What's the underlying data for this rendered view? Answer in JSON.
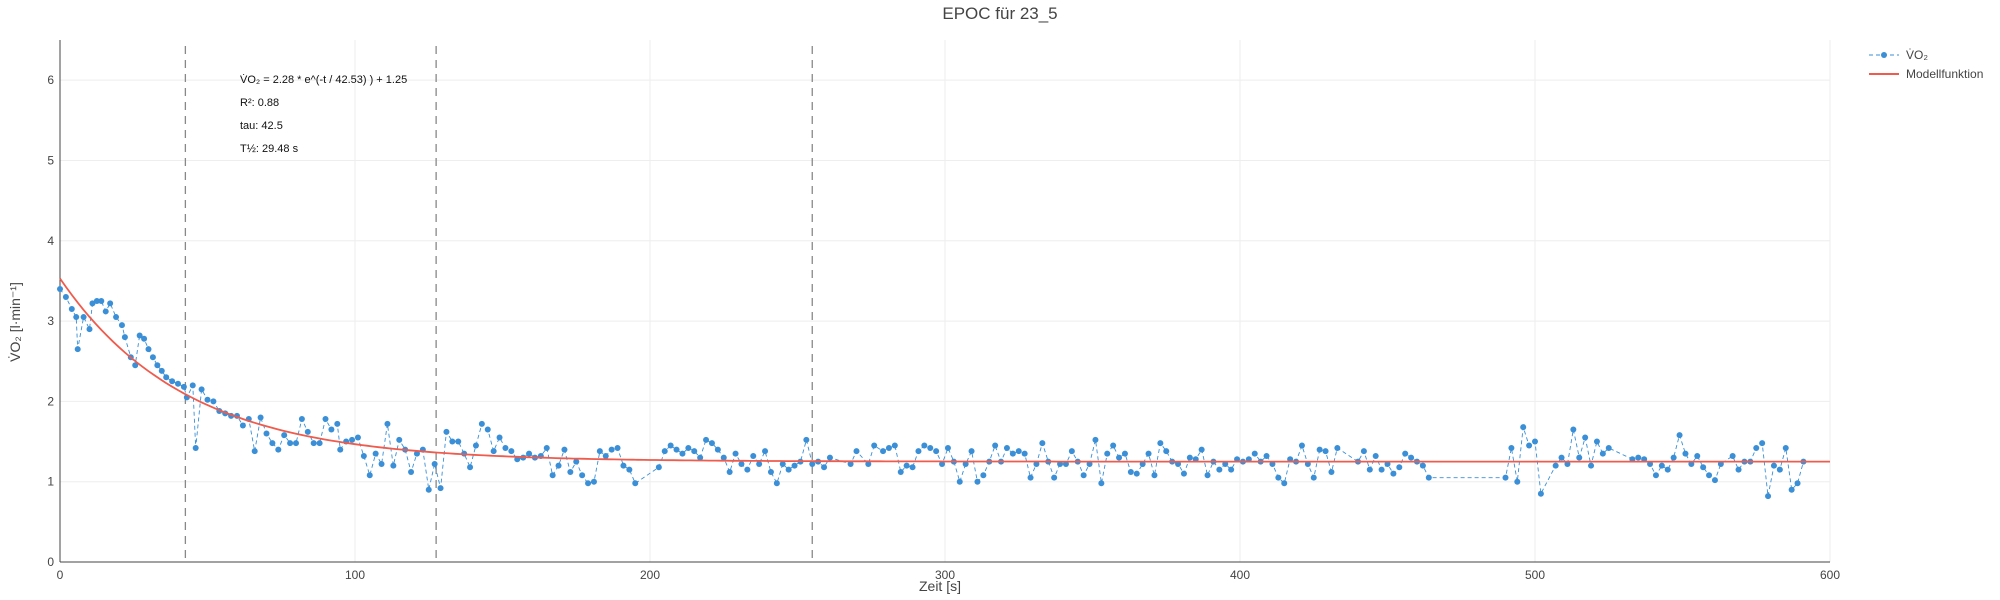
{
  "chart_data": {
    "type": "scatter",
    "title": "EPOC für 23_5",
    "xlabel": "Zeit [s]",
    "ylabel": "V̇O₂ [l·min⁻¹]",
    "xlim": [
      0,
      600
    ],
    "ylim": [
      0,
      6.5
    ],
    "xticks": [
      0,
      100,
      200,
      300,
      400,
      500,
      600
    ],
    "yticks": [
      0,
      1,
      2,
      3,
      4,
      5,
      6
    ],
    "grid": true,
    "legend_position": "top-right",
    "colors": {
      "measured": "#3a8fd6",
      "model": "#ef5b4c",
      "vline": "#888888"
    },
    "vertical_lines_x": [
      42.5,
      127.5,
      255
    ],
    "annotations": [
      "V̇O₂ = 2.28 * e^(-t / 42.53) ) + 1.25",
      "R²: 0.88",
      "tau: 42.5",
      "T½: 29.48 s"
    ],
    "series": [
      {
        "name": "V̇O₂",
        "kind": "markers+dashed-line",
        "points": [
          [
            0,
            3.4
          ],
          [
            2,
            3.3
          ],
          [
            4,
            3.15
          ],
          [
            5.5,
            3.05
          ],
          [
            6,
            2.65
          ],
          [
            8,
            3.05
          ],
          [
            10,
            2.9
          ],
          [
            11,
            3.22
          ],
          [
            12.5,
            3.25
          ],
          [
            14,
            3.25
          ],
          [
            15.5,
            3.12
          ],
          [
            17,
            3.22
          ],
          [
            19,
            3.05
          ],
          [
            21,
            2.95
          ],
          [
            22,
            2.8
          ],
          [
            24,
            2.55
          ],
          [
            25.5,
            2.45
          ],
          [
            27,
            2.82
          ],
          [
            28.5,
            2.78
          ],
          [
            30,
            2.65
          ],
          [
            31.5,
            2.55
          ],
          [
            33,
            2.45
          ],
          [
            34.5,
            2.38
          ],
          [
            36,
            2.3
          ],
          [
            38,
            2.25
          ],
          [
            40,
            2.22
          ],
          [
            42,
            2.18
          ],
          [
            43,
            2.05
          ],
          [
            45,
            2.2
          ],
          [
            46,
            1.42
          ],
          [
            48,
            2.15
          ],
          [
            50,
            2.02
          ],
          [
            52,
            2.0
          ],
          [
            54,
            1.88
          ],
          [
            56,
            1.85
          ],
          [
            58,
            1.82
          ],
          [
            60,
            1.82
          ],
          [
            62,
            1.7
          ],
          [
            64,
            1.78
          ],
          [
            66,
            1.38
          ],
          [
            68,
            1.8
          ],
          [
            70,
            1.6
          ],
          [
            72,
            1.48
          ],
          [
            74,
            1.4
          ],
          [
            76,
            1.58
          ],
          [
            78,
            1.48
          ],
          [
            80,
            1.48
          ],
          [
            82,
            1.78
          ],
          [
            84,
            1.62
          ],
          [
            86,
            1.48
          ],
          [
            88,
            1.48
          ],
          [
            90,
            1.78
          ],
          [
            92,
            1.65
          ],
          [
            94,
            1.72
          ],
          [
            95,
            1.4
          ],
          [
            97,
            1.5
          ],
          [
            99,
            1.52
          ],
          [
            101,
            1.55
          ],
          [
            103,
            1.32
          ],
          [
            105,
            1.08
          ],
          [
            107,
            1.35
          ],
          [
            109,
            1.22
          ],
          [
            111,
            1.72
          ],
          [
            113,
            1.2
          ],
          [
            115,
            1.52
          ],
          [
            117,
            1.4
          ],
          [
            119,
            1.12
          ],
          [
            121,
            1.35
          ],
          [
            123,
            1.4
          ],
          [
            125,
            0.9
          ],
          [
            127,
            1.22
          ],
          [
            129,
            0.92
          ],
          [
            131,
            1.62
          ],
          [
            133,
            1.5
          ],
          [
            135,
            1.5
          ],
          [
            137,
            1.35
          ],
          [
            139,
            1.18
          ],
          [
            141,
            1.45
          ],
          [
            143,
            1.72
          ],
          [
            145,
            1.65
          ],
          [
            147,
            1.38
          ],
          [
            149,
            1.55
          ],
          [
            151,
            1.42
          ],
          [
            153,
            1.38
          ],
          [
            155,
            1.28
          ],
          [
            157,
            1.3
          ],
          [
            159,
            1.35
          ],
          [
            161,
            1.3
          ],
          [
            163,
            1.32
          ],
          [
            165,
            1.42
          ],
          [
            167,
            1.08
          ],
          [
            169,
            1.2
          ],
          [
            171,
            1.4
          ],
          [
            173,
            1.12
          ],
          [
            175,
            1.25
          ],
          [
            177,
            1.08
          ],
          [
            179,
            0.98
          ],
          [
            181,
            1.0
          ],
          [
            183,
            1.38
          ],
          [
            185,
            1.32
          ],
          [
            187,
            1.4
          ],
          [
            189,
            1.42
          ],
          [
            191,
            1.2
          ],
          [
            193,
            1.15
          ],
          [
            195,
            0.98
          ],
          [
            203,
            1.18
          ],
          [
            205,
            1.38
          ],
          [
            207,
            1.45
          ],
          [
            209,
            1.4
          ],
          [
            211,
            1.35
          ],
          [
            213,
            1.42
          ],
          [
            215,
            1.38
          ],
          [
            217,
            1.3
          ],
          [
            219,
            1.52
          ],
          [
            221,
            1.48
          ],
          [
            223,
            1.4
          ],
          [
            225,
            1.3
          ],
          [
            227,
            1.12
          ],
          [
            229,
            1.35
          ],
          [
            231,
            1.22
          ],
          [
            233,
            1.15
          ],
          [
            235,
            1.32
          ],
          [
            237,
            1.22
          ],
          [
            239,
            1.38
          ],
          [
            241,
            1.12
          ],
          [
            243,
            0.98
          ],
          [
            245,
            1.22
          ],
          [
            247,
            1.15
          ],
          [
            249,
            1.2
          ],
          [
            251,
            1.25
          ],
          [
            253,
            1.52
          ],
          [
            255,
            1.22
          ],
          [
            257,
            1.25
          ],
          [
            259,
            1.18
          ],
          [
            261,
            1.3
          ],
          [
            268,
            1.22
          ],
          [
            270,
            1.38
          ],
          [
            274,
            1.22
          ],
          [
            276,
            1.45
          ],
          [
            279,
            1.38
          ],
          [
            281,
            1.42
          ],
          [
            283,
            1.45
          ],
          [
            285,
            1.12
          ],
          [
            287,
            1.2
          ],
          [
            289,
            1.18
          ],
          [
            291,
            1.38
          ],
          [
            293,
            1.45
          ],
          [
            295,
            1.42
          ],
          [
            297,
            1.38
          ],
          [
            299,
            1.22
          ],
          [
            301,
            1.42
          ],
          [
            303,
            1.25
          ],
          [
            305,
            1.0
          ],
          [
            307,
            1.22
          ],
          [
            309,
            1.38
          ],
          [
            311,
            1.0
          ],
          [
            313,
            1.08
          ],
          [
            315,
            1.25
          ],
          [
            317,
            1.45
          ],
          [
            319,
            1.25
          ],
          [
            321,
            1.42
          ],
          [
            323,
            1.35
          ],
          [
            325,
            1.38
          ],
          [
            327,
            1.35
          ],
          [
            329,
            1.05
          ],
          [
            331,
            1.22
          ],
          [
            333,
            1.48
          ],
          [
            335,
            1.25
          ],
          [
            337,
            1.05
          ],
          [
            339,
            1.22
          ],
          [
            341,
            1.22
          ],
          [
            343,
            1.38
          ],
          [
            345,
            1.25
          ],
          [
            347,
            1.08
          ],
          [
            349,
            1.22
          ],
          [
            351,
            1.52
          ],
          [
            353,
            0.98
          ],
          [
            355,
            1.35
          ],
          [
            357,
            1.45
          ],
          [
            359,
            1.3
          ],
          [
            361,
            1.35
          ],
          [
            363,
            1.12
          ],
          [
            365,
            1.1
          ],
          [
            367,
            1.22
          ],
          [
            369,
            1.35
          ],
          [
            371,
            1.08
          ],
          [
            373,
            1.48
          ],
          [
            375,
            1.38
          ],
          [
            377,
            1.25
          ],
          [
            379,
            1.22
          ],
          [
            381,
            1.1
          ],
          [
            383,
            1.3
          ],
          [
            385,
            1.28
          ],
          [
            387,
            1.4
          ],
          [
            389,
            1.08
          ],
          [
            391,
            1.25
          ],
          [
            393,
            1.15
          ],
          [
            395,
            1.22
          ],
          [
            397,
            1.15
          ],
          [
            399,
            1.28
          ],
          [
            401,
            1.25
          ],
          [
            403,
            1.28
          ],
          [
            405,
            1.35
          ],
          [
            407,
            1.25
          ],
          [
            409,
            1.32
          ],
          [
            411,
            1.22
          ],
          [
            413,
            1.05
          ],
          [
            415,
            0.98
          ],
          [
            417,
            1.28
          ],
          [
            419,
            1.25
          ],
          [
            421,
            1.45
          ],
          [
            423,
            1.22
          ],
          [
            425,
            1.05
          ],
          [
            427,
            1.4
          ],
          [
            429,
            1.38
          ],
          [
            431,
            1.12
          ],
          [
            433,
            1.42
          ],
          [
            440,
            1.25
          ],
          [
            442,
            1.38
          ],
          [
            444,
            1.15
          ],
          [
            446,
            1.32
          ],
          [
            448,
            1.15
          ],
          [
            450,
            1.22
          ],
          [
            452,
            1.1
          ],
          [
            454,
            1.18
          ],
          [
            456,
            1.35
          ],
          [
            458,
            1.3
          ],
          [
            460,
            1.25
          ],
          [
            462,
            1.2
          ],
          [
            464,
            1.05
          ],
          [
            490,
            1.05
          ],
          [
            492,
            1.42
          ],
          [
            494,
            1.0
          ],
          [
            496,
            1.68
          ],
          [
            498,
            1.45
          ],
          [
            500,
            1.5
          ],
          [
            502,
            0.85
          ],
          [
            507,
            1.2
          ],
          [
            509,
            1.3
          ],
          [
            511,
            1.22
          ],
          [
            513,
            1.65
          ],
          [
            515,
            1.3
          ],
          [
            517,
            1.55
          ],
          [
            519,
            1.2
          ],
          [
            521,
            1.5
          ],
          [
            523,
            1.35
          ],
          [
            525,
            1.42
          ],
          [
            533,
            1.28
          ],
          [
            535,
            1.3
          ],
          [
            537,
            1.28
          ],
          [
            539,
            1.22
          ],
          [
            541,
            1.08
          ],
          [
            543,
            1.2
          ],
          [
            545,
            1.15
          ],
          [
            547,
            1.3
          ],
          [
            549,
            1.58
          ],
          [
            551,
            1.35
          ],
          [
            553,
            1.22
          ],
          [
            555,
            1.32
          ],
          [
            557,
            1.18
          ],
          [
            559,
            1.08
          ],
          [
            561,
            1.02
          ],
          [
            563,
            1.22
          ],
          [
            567,
            1.32
          ],
          [
            569,
            1.15
          ],
          [
            571,
            1.25
          ],
          [
            573,
            1.25
          ],
          [
            575,
            1.42
          ],
          [
            577,
            1.48
          ],
          [
            579,
            0.82
          ],
          [
            581,
            1.2
          ],
          [
            583,
            1.15
          ],
          [
            585,
            1.42
          ],
          [
            587,
            0.9
          ],
          [
            589,
            0.98
          ],
          [
            591,
            1.25
          ]
        ]
      },
      {
        "name": "Modellfunktion",
        "kind": "line",
        "model": {
          "a": 2.28,
          "tau": 42.53,
          "c": 1.25
        }
      }
    ]
  }
}
